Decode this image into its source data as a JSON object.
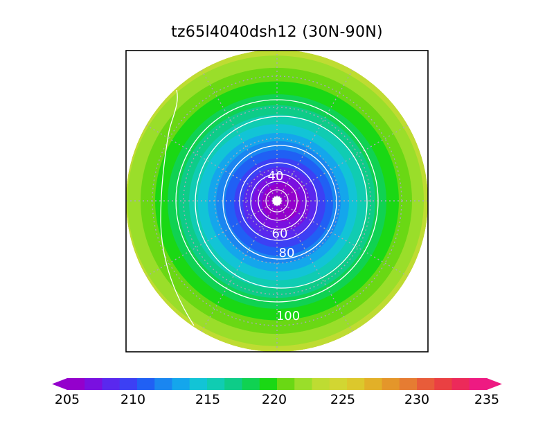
{
  "title": "tz65l4040dsh12 (30N-90N)",
  "map": {
    "projection": "north-polar-stereographic",
    "latitude_range": [
      "30N",
      "90N"
    ],
    "filled_field_range": [
      205,
      235
    ],
    "contours": [
      {
        "level": "40",
        "label": "40"
      },
      {
        "level": "60",
        "label": "60"
      },
      {
        "level": "80",
        "label": "80"
      },
      {
        "level": "100",
        "label": "100"
      }
    ],
    "graticule": "dotted-gray",
    "contour_color": "#ffffff"
  },
  "colorbar": {
    "min": 205,
    "max": 235,
    "step": 1.25,
    "tick_labels": [
      "205",
      "210",
      "215",
      "220",
      "225",
      "230",
      "235"
    ],
    "colors": [
      "#9400cc",
      "#7a10e0",
      "#5a28ee",
      "#3c40f4",
      "#2060f4",
      "#1a86f0",
      "#14a6ec",
      "#12c4d6",
      "#10ccb2",
      "#0ecc88",
      "#10d252",
      "#1ad814",
      "#6ad814",
      "#9ade2a",
      "#bedc32",
      "#d2d632",
      "#dcc82c",
      "#e2b028",
      "#e4962a",
      "#e67c32",
      "#e85c3a",
      "#ea4042",
      "#ec2a5a",
      "#ee1a82"
    ]
  }
}
